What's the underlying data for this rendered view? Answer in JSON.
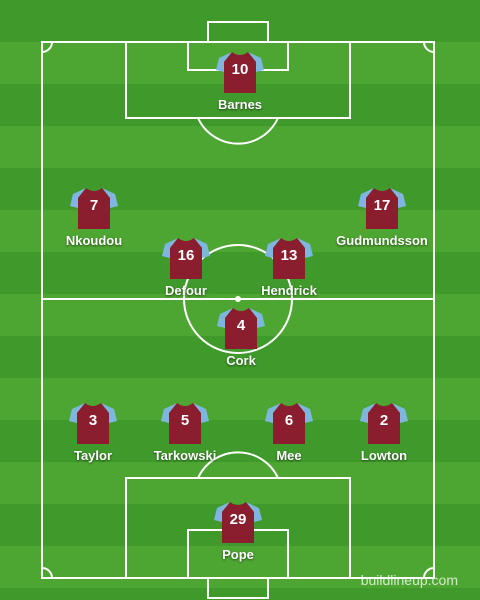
{
  "colors": {
    "shirt_body": "#8a1e2e",
    "shirt_sleeves": "#7fb6e0",
    "pitch_stripe_dark": "#3f9a2b",
    "pitch_stripe_light": "#4ea632",
    "lines": "#ffffff"
  },
  "players": [
    {
      "number": "10",
      "name": "Barnes"
    },
    {
      "number": "7",
      "name": "Nkoudou"
    },
    {
      "number": "17",
      "name": "Gudmundsson"
    },
    {
      "number": "16",
      "name": "Defour"
    },
    {
      "number": "13",
      "name": "Hendrick"
    },
    {
      "number": "4",
      "name": "Cork"
    },
    {
      "number": "3",
      "name": "Taylor"
    },
    {
      "number": "5",
      "name": "Tarkowski"
    },
    {
      "number": "6",
      "name": "Mee"
    },
    {
      "number": "2",
      "name": "Lowton"
    },
    {
      "number": "29",
      "name": "Pope"
    }
  ],
  "watermark": "buildlineup.com"
}
